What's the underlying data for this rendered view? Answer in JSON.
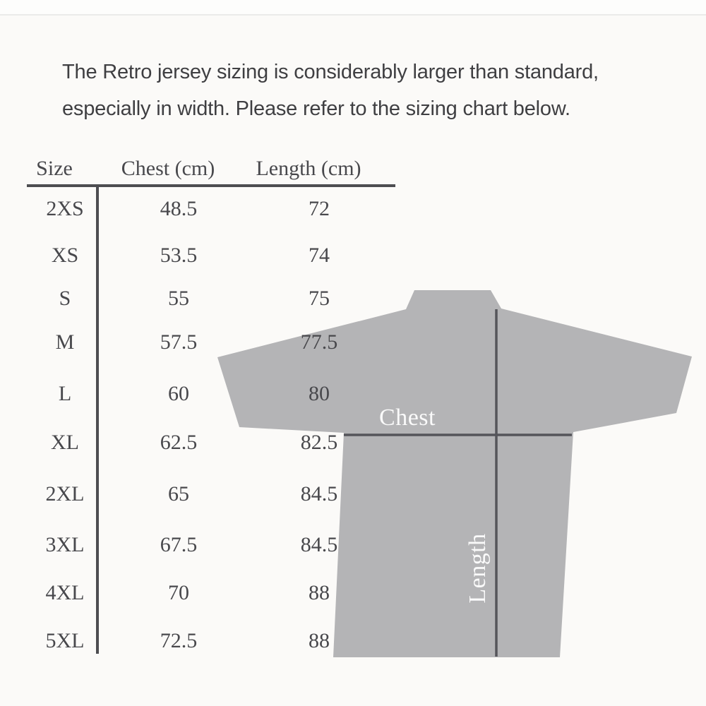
{
  "intro": {
    "line1": "The Retro jersey sizing is considerably larger than standard,",
    "line2": "especially in width. Please refer to the sizing chart below."
  },
  "size_chart": {
    "columns": {
      "size": "Size",
      "chest": "Chest (cm)",
      "length": "Length (cm)"
    },
    "rows": [
      {
        "size": "2XS",
        "chest": "48.5",
        "length": "72"
      },
      {
        "size": "XS",
        "chest": "53.5",
        "length": "74"
      },
      {
        "size": "S",
        "chest": "55",
        "length": "75"
      },
      {
        "size": "M",
        "chest": "57.5",
        "length": "77.5"
      },
      {
        "size": "L",
        "chest": "60",
        "length": "80"
      },
      {
        "size": "XL",
        "chest": "62.5",
        "length": "82.5"
      },
      {
        "size": "2XL",
        "chest": "65",
        "length": "84.5"
      },
      {
        "size": "3XL",
        "chest": "67.5",
        "length": "84.5"
      },
      {
        "size": "4XL",
        "chest": "70",
        "length": "88"
      },
      {
        "size": "5XL",
        "chest": "72.5",
        "length": "88"
      }
    ]
  },
  "diagram": {
    "chest_label": "Chest",
    "length_label": "Length",
    "jersey_color": "#b4b4b6",
    "line_color": "#55555a"
  },
  "chart_data": {
    "type": "table",
    "title": "Retro jersey sizing chart",
    "columns": [
      "Size",
      "Chest (cm)",
      "Length (cm)"
    ],
    "rows": [
      [
        "2XS",
        48.5,
        72
      ],
      [
        "XS",
        53.5,
        74
      ],
      [
        "S",
        55,
        75
      ],
      [
        "M",
        57.5,
        77.5
      ],
      [
        "L",
        60,
        80
      ],
      [
        "XL",
        62.5,
        82.5
      ],
      [
        "2XL",
        65,
        84.5
      ],
      [
        "3XL",
        67.5,
        84.5
      ],
      [
        "4XL",
        70,
        88
      ],
      [
        "5XL",
        72.5,
        88
      ]
    ],
    "notes": "Jersey back-view diagram marks Chest as horizontal measurement line and Length as vertical measurement line"
  }
}
